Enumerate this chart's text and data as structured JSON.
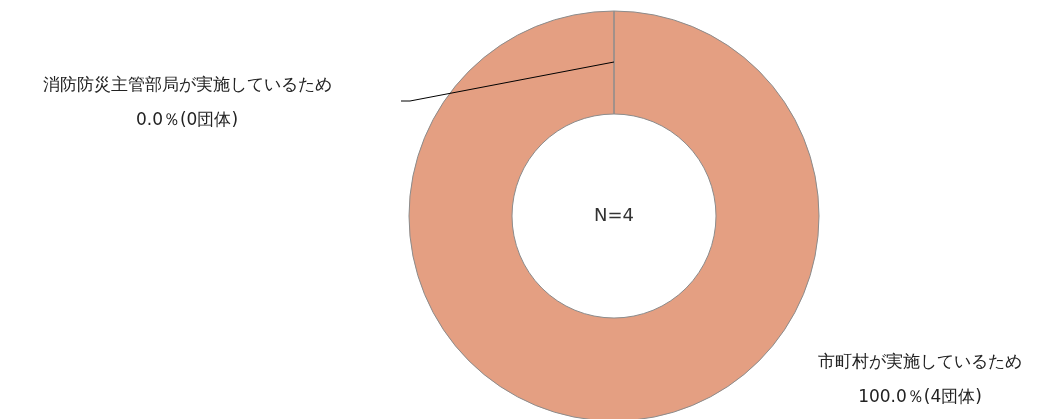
{
  "chart_data": {
    "type": "donut",
    "categories": [
      "市町村が実施しているため",
      "消防防災主管部局が実施しているため"
    ],
    "values": [
      100,
      0
    ],
    "value_labels": [
      "100.0％(4団体)",
      "0.0％(0団体)"
    ],
    "colors": [
      "#e49f82",
      "#d97f54"
    ],
    "annotations": [
      "N=4"
    ]
  }
}
